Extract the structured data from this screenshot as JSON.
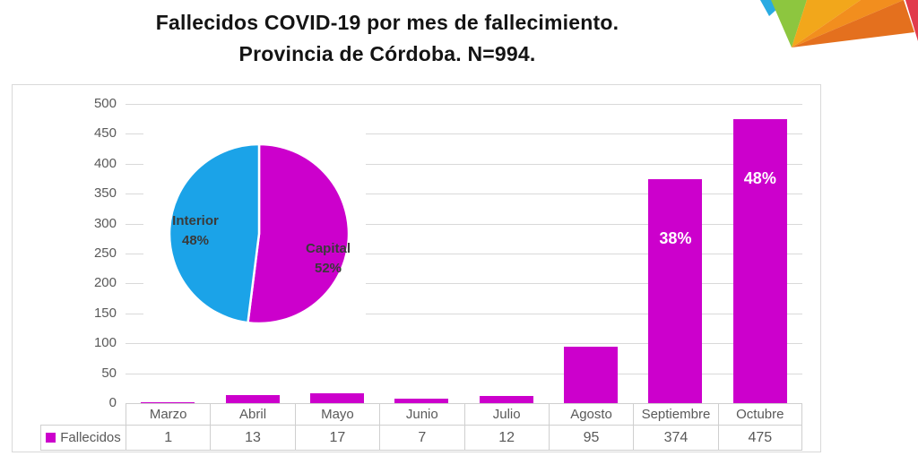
{
  "title": {
    "line1": "Fallecidos COVID-19 por mes de fallecimiento.",
    "line2": "Provincia de Córdoba. N=994."
  },
  "colors": {
    "bar": "#CC00CC",
    "pie_capital": "#CC00CC",
    "pie_interior": "#1BA3E8",
    "grid": "#D9D9D9",
    "axis_text": "#595959",
    "table_border": "#CFCFCF",
    "bar_label_text": "#FFFFFF",
    "pie_label_text": "#3A3A3A",
    "panel_border": "#D9D9D9",
    "title_text": "#141414"
  },
  "logo": {
    "name": "colorful-polygon-logo",
    "colors": {
      "blue": "#29ABE2",
      "green": "#8DC63F",
      "yellow": "#F2A71B",
      "orange": "#F28E1E",
      "dark_orange": "#E4701E",
      "red": "#E13B4C"
    }
  },
  "chart_data": [
    {
      "type": "bar",
      "title": "Fallecidos COVID-19 por mes de fallecimiento. Provincia de Córdoba. N=994.",
      "categories": [
        "Marzo",
        "Abril",
        "Mayo",
        "Junio",
        "Julio",
        "Agosto",
        "Septiembre",
        "Octubre"
      ],
      "series": [
        {
          "name": "Fallecidos",
          "values": [
            1,
            13,
            17,
            7,
            12,
            95,
            374,
            475
          ]
        }
      ],
      "bar_value_labels": [
        "",
        "",
        "",
        "",
        "",
        "",
        "38%",
        "48%"
      ],
      "xlabel": "",
      "ylabel": "",
      "ylim": [
        0,
        500
      ],
      "yticks": [
        0,
        50,
        100,
        150,
        200,
        250,
        300,
        350,
        400,
        450,
        500
      ],
      "grid": true,
      "bar_color": "#CC00CC",
      "legend_position": "bottom-table"
    },
    {
      "type": "pie",
      "start_angle": "top",
      "direction": "clockwise",
      "slices": [
        {
          "label": "Capital",
          "pct": 52,
          "pct_text": "52%",
          "color": "#CC00CC"
        },
        {
          "label": "Interior",
          "pct": 48,
          "pct_text": "48%",
          "color": "#1BA3E8"
        }
      ]
    }
  ]
}
